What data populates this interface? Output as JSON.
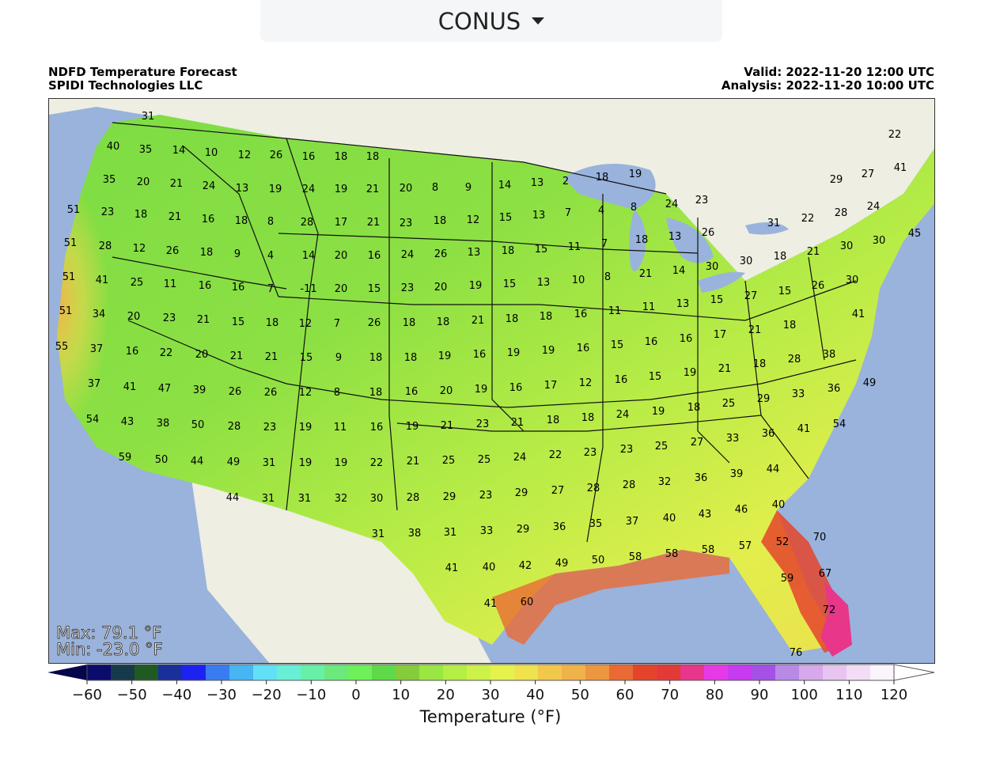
{
  "selector": {
    "label": "CONUS"
  },
  "header": {
    "title": "NDFD Temperature Forecast",
    "org": "SPIDI Technologies LLC",
    "valid": "Valid: 2022-11-20 12:00 UTC",
    "analysis": "Analysis: 2022-11-20 10:00 UTC"
  },
  "stats": {
    "max": "Max: 79.1 °F",
    "min": "Min: -23.0 °F"
  },
  "colorbar": {
    "title": "Temperature (°F)",
    "ticks": [
      "−60",
      "−50",
      "−40",
      "−30",
      "−20",
      "−10",
      "0",
      "10",
      "20",
      "30",
      "40",
      "50",
      "60",
      "70",
      "80",
      "90",
      "100",
      "110",
      "120"
    ],
    "colors": [
      "#0b0b6e",
      "#163a4a",
      "#1f5a22",
      "#1a2f9a",
      "#1e22f0",
      "#3a7cf0",
      "#47b4f4",
      "#63e0f6",
      "#67f0d6",
      "#68f0a8",
      "#6ce97a",
      "#6ef05a",
      "#5fd84a",
      "#84cc3a",
      "#9ae643",
      "#b4ef46",
      "#cdf24a",
      "#e6f24c",
      "#eee24f",
      "#f2c84c",
      "#f0b24a",
      "#ec9640",
      "#ea6a35",
      "#e4442c",
      "#e33a38",
      "#e8368a",
      "#e63ae6",
      "#c63af0",
      "#a650e8",
      "#b88ae6",
      "#d8a8ec",
      "#e8c4f0",
      "#f2dcf6",
      "#fbf4fb"
    ],
    "under_color": "#06064a",
    "over_color": "#ffffff"
  },
  "map": {
    "ocean_color": "#99b3dc",
    "land_color": "#eeeee2",
    "labels": [
      [
        "31",
        186,
        145
      ],
      [
        "40",
        142,
        183
      ],
      [
        "35",
        183,
        187
      ],
      [
        "14",
        225,
        188
      ],
      [
        "10",
        266,
        191
      ],
      [
        "12",
        308,
        194
      ],
      [
        "26",
        348,
        194
      ],
      [
        "16",
        389,
        196
      ],
      [
        "18",
        430,
        196
      ],
      [
        "18",
        470,
        196
      ],
      [
        "35",
        137,
        225
      ],
      [
        "20",
        180,
        228
      ],
      [
        "21",
        222,
        230
      ],
      [
        "24",
        263,
        233
      ],
      [
        "13",
        305,
        236
      ],
      [
        "19",
        347,
        237
      ],
      [
        "24",
        389,
        237
      ],
      [
        "19",
        430,
        237
      ],
      [
        "21",
        470,
        237
      ],
      [
        "20",
        512,
        236
      ],
      [
        "8",
        549,
        235
      ],
      [
        "9",
        591,
        235
      ],
      [
        "14",
        637,
        232
      ],
      [
        "13",
        678,
        229
      ],
      [
        "2",
        714,
        227
      ],
      [
        "18",
        760,
        222
      ],
      [
        "19",
        802,
        218
      ],
      [
        "22",
        1130,
        168
      ],
      [
        "51",
        92,
        263
      ],
      [
        "23",
        135,
        266
      ],
      [
        "18",
        177,
        269
      ],
      [
        "21",
        220,
        272
      ],
      [
        "16",
        262,
        275
      ],
      [
        "18",
        304,
        277
      ],
      [
        "8",
        341,
        278
      ],
      [
        "28",
        387,
        279
      ],
      [
        "17",
        430,
        279
      ],
      [
        "21",
        471,
        279
      ],
      [
        "23",
        512,
        280
      ],
      [
        "18",
        555,
        277
      ],
      [
        "12",
        597,
        276
      ],
      [
        "15",
        638,
        273
      ],
      [
        "13",
        680,
        270
      ],
      [
        "7",
        717,
        267
      ],
      [
        "4",
        759,
        264
      ],
      [
        "8",
        800,
        260
      ],
      [
        "24",
        848,
        256
      ],
      [
        "23",
        886,
        251
      ],
      [
        "29",
        1056,
        225
      ],
      [
        "27",
        1096,
        218
      ],
      [
        "41",
        1137,
        210
      ],
      [
        "51",
        88,
        305
      ],
      [
        "28",
        132,
        309
      ],
      [
        "12",
        175,
        312
      ],
      [
        "26",
        217,
        315
      ],
      [
        "18",
        260,
        317
      ],
      [
        "9",
        299,
        319
      ],
      [
        "4",
        341,
        321
      ],
      [
        "14",
        389,
        321
      ],
      [
        "20",
        430,
        321
      ],
      [
        "16",
        472,
        321
      ],
      [
        "24",
        514,
        320
      ],
      [
        "26",
        556,
        319
      ],
      [
        "13",
        598,
        317
      ],
      [
        "18",
        641,
        315
      ],
      [
        "15",
        683,
        313
      ],
      [
        "11",
        725,
        310
      ],
      [
        "7",
        763,
        306
      ],
      [
        "18",
        810,
        301
      ],
      [
        "13",
        852,
        297
      ],
      [
        "26",
        894,
        292
      ],
      [
        "31",
        977,
        280
      ],
      [
        "22",
        1020,
        274
      ],
      [
        "28",
        1062,
        267
      ],
      [
        "24",
        1103,
        259
      ],
      [
        "45",
        1155,
        293
      ],
      [
        "51",
        86,
        348
      ],
      [
        "41",
        128,
        352
      ],
      [
        "25",
        172,
        355
      ],
      [
        "11",
        214,
        357
      ],
      [
        "16",
        258,
        359
      ],
      [
        "16",
        300,
        361
      ],
      [
        "7",
        341,
        363
      ],
      [
        "-11",
        389,
        363
      ],
      [
        "20",
        430,
        363
      ],
      [
        "15",
        472,
        363
      ],
      [
        "23",
        514,
        362
      ],
      [
        "20",
        556,
        361
      ],
      [
        "19",
        600,
        359
      ],
      [
        "15",
        643,
        357
      ],
      [
        "13",
        686,
        355
      ],
      [
        "10",
        730,
        352
      ],
      [
        "8",
        767,
        348
      ],
      [
        "21",
        815,
        344
      ],
      [
        "14",
        857,
        340
      ],
      [
        "30",
        899,
        335
      ],
      [
        "30",
        942,
        328
      ],
      [
        "18",
        985,
        322
      ],
      [
        "21",
        1027,
        316
      ],
      [
        "30",
        1069,
        309
      ],
      [
        "30",
        1110,
        302
      ],
      [
        "51",
        82,
        391
      ],
      [
        "34",
        124,
        395
      ],
      [
        "20",
        168,
        398
      ],
      [
        "23",
        213,
        400
      ],
      [
        "21",
        256,
        402
      ],
      [
        "15",
        300,
        405
      ],
      [
        "18",
        343,
        406
      ],
      [
        "12",
        385,
        407
      ],
      [
        "7",
        425,
        407
      ],
      [
        "26",
        472,
        406
      ],
      [
        "18",
        516,
        406
      ],
      [
        "18",
        559,
        405
      ],
      [
        "21",
        603,
        403
      ],
      [
        "18",
        646,
        401
      ],
      [
        "18",
        689,
        398
      ],
      [
        "16",
        733,
        395
      ],
      [
        "11",
        776,
        391
      ],
      [
        "11",
        819,
        386
      ],
      [
        "13",
        862,
        382
      ],
      [
        "15",
        905,
        377
      ],
      [
        "27",
        948,
        372
      ],
      [
        "15",
        991,
        366
      ],
      [
        "26",
        1033,
        359
      ],
      [
        "30",
        1076,
        352
      ],
      [
        "55",
        77,
        436
      ],
      [
        "37",
        121,
        439
      ],
      [
        "16",
        166,
        442
      ],
      [
        "22",
        209,
        444
      ],
      [
        "20",
        254,
        446
      ],
      [
        "21",
        298,
        448
      ],
      [
        "21",
        342,
        449
      ],
      [
        "15",
        386,
        450
      ],
      [
        "9",
        427,
        450
      ],
      [
        "18",
        474,
        450
      ],
      [
        "18",
        518,
        450
      ],
      [
        "19",
        561,
        448
      ],
      [
        "16",
        605,
        446
      ],
      [
        "19",
        648,
        444
      ],
      [
        "19",
        692,
        441
      ],
      [
        "16",
        736,
        438
      ],
      [
        "15",
        779,
        434
      ],
      [
        "16",
        822,
        430
      ],
      [
        "16",
        866,
        426
      ],
      [
        "17",
        909,
        421
      ],
      [
        "21",
        953,
        415
      ],
      [
        "18",
        997,
        409
      ],
      [
        "41",
        1084,
        395
      ],
      [
        "37",
        118,
        483
      ],
      [
        "41",
        163,
        487
      ],
      [
        "47",
        207,
        489
      ],
      [
        "39",
        251,
        491
      ],
      [
        "26",
        296,
        493
      ],
      [
        "26",
        341,
        494
      ],
      [
        "12",
        385,
        494
      ],
      [
        "8",
        425,
        494
      ],
      [
        "18",
        474,
        494
      ],
      [
        "16",
        519,
        493
      ],
      [
        "20",
        563,
        492
      ],
      [
        "19",
        607,
        490
      ],
      [
        "16",
        651,
        488
      ],
      [
        "17",
        695,
        485
      ],
      [
        "12",
        739,
        482
      ],
      [
        "16",
        784,
        478
      ],
      [
        "15",
        827,
        474
      ],
      [
        "19",
        871,
        469
      ],
      [
        "21",
        915,
        464
      ],
      [
        "18",
        959,
        458
      ],
      [
        "28",
        1003,
        452
      ],
      [
        "38",
        1047,
        446
      ],
      [
        "54",
        116,
        528
      ],
      [
        "43",
        160,
        531
      ],
      [
        "38",
        205,
        533
      ],
      [
        "50",
        249,
        535
      ],
      [
        "28",
        295,
        537
      ],
      [
        "23",
        340,
        538
      ],
      [
        "19",
        385,
        538
      ],
      [
        "11",
        429,
        538
      ],
      [
        "16",
        475,
        538
      ],
      [
        "19",
        520,
        537
      ],
      [
        "21",
        564,
        536
      ],
      [
        "23",
        609,
        534
      ],
      [
        "21",
        653,
        532
      ],
      [
        "18",
        698,
        529
      ],
      [
        "18",
        742,
        526
      ],
      [
        "24",
        786,
        522
      ],
      [
        "19",
        831,
        518
      ],
      [
        "18",
        876,
        513
      ],
      [
        "25",
        920,
        508
      ],
      [
        "29",
        964,
        502
      ],
      [
        "33",
        1008,
        496
      ],
      [
        "36",
        1053,
        489
      ],
      [
        "49",
        1098,
        482
      ],
      [
        "59",
        157,
        576
      ],
      [
        "50",
        203,
        579
      ],
      [
        "44",
        248,
        581
      ],
      [
        "49",
        294,
        582
      ],
      [
        "31",
        339,
        583
      ],
      [
        "19",
        385,
        583
      ],
      [
        "19",
        430,
        583
      ],
      [
        "22",
        475,
        583
      ],
      [
        "21",
        521,
        581
      ],
      [
        "25",
        566,
        580
      ],
      [
        "25",
        611,
        579
      ],
      [
        "24",
        656,
        576
      ],
      [
        "22",
        701,
        573
      ],
      [
        "23",
        745,
        570
      ],
      [
        "23",
        791,
        566
      ],
      [
        "25",
        835,
        562
      ],
      [
        "27",
        880,
        557
      ],
      [
        "33",
        925,
        552
      ],
      [
        "36",
        970,
        546
      ],
      [
        "41",
        1015,
        540
      ],
      [
        "54",
        1060,
        534
      ],
      [
        "44",
        293,
        627
      ],
      [
        "31",
        338,
        628
      ],
      [
        "31",
        384,
        628
      ],
      [
        "32",
        430,
        628
      ],
      [
        "30",
        475,
        628
      ],
      [
        "28",
        521,
        627
      ],
      [
        "29",
        567,
        626
      ],
      [
        "23",
        613,
        624
      ],
      [
        "29",
        658,
        621
      ],
      [
        "27",
        704,
        618
      ],
      [
        "28",
        749,
        615
      ],
      [
        "28",
        794,
        611
      ],
      [
        "32",
        839,
        607
      ],
      [
        "36",
        885,
        602
      ],
      [
        "39",
        930,
        597
      ],
      [
        "44",
        976,
        591
      ],
      [
        "31",
        477,
        673
      ],
      [
        "38",
        523,
        672
      ],
      [
        "31",
        568,
        671
      ],
      [
        "33",
        614,
        669
      ],
      [
        "29",
        660,
        667
      ],
      [
        "36",
        706,
        664
      ],
      [
        "35",
        752,
        660
      ],
      [
        "37",
        798,
        657
      ],
      [
        "40",
        845,
        653
      ],
      [
        "43",
        890,
        648
      ],
      [
        "46",
        936,
        642
      ],
      [
        "40",
        983,
        636
      ],
      [
        "41",
        570,
        716
      ],
      [
        "40",
        617,
        715
      ],
      [
        "42",
        663,
        713
      ],
      [
        "49",
        709,
        710
      ],
      [
        "50",
        755,
        706
      ],
      [
        "58",
        802,
        702
      ],
      [
        "58",
        848,
        698
      ],
      [
        "58",
        894,
        693
      ],
      [
        "57",
        941,
        688
      ],
      [
        "52",
        988,
        683
      ],
      [
        "70",
        1035,
        677
      ],
      [
        "41",
        619,
        761
      ],
      [
        "60",
        665,
        759
      ],
      [
        "59",
        994,
        729
      ],
      [
        "67",
        1042,
        723
      ],
      [
        "72",
        1047,
        769
      ],
      [
        "76",
        1005,
        823
      ]
    ]
  }
}
